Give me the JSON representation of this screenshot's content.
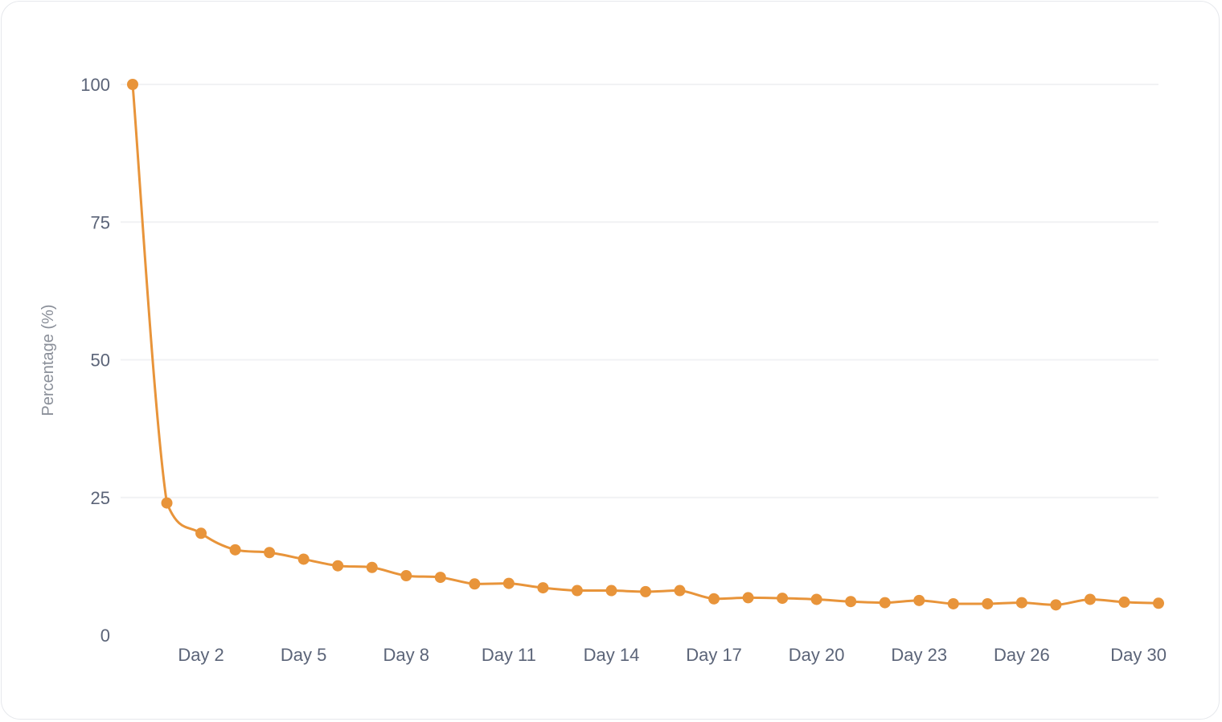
{
  "chart_data": {
    "type": "line",
    "ylabel": "Percentage (%)",
    "xlabel": "",
    "ylim": [
      0,
      100
    ],
    "yticks": [
      0,
      25,
      50,
      75,
      100
    ],
    "x": [
      1,
      2,
      3,
      4,
      5,
      6,
      7,
      8,
      9,
      10,
      11,
      12,
      13,
      14,
      15,
      16,
      17,
      18,
      19,
      20,
      21,
      22,
      23,
      24,
      25,
      26,
      27,
      28,
      29,
      30,
      31
    ],
    "x_tick_labels": [
      {
        "x": 3,
        "label": "Day 2"
      },
      {
        "x": 6,
        "label": "Day 5"
      },
      {
        "x": 9,
        "label": "Day 8"
      },
      {
        "x": 12,
        "label": "Day 11"
      },
      {
        "x": 15,
        "label": "Day 14"
      },
      {
        "x": 18,
        "label": "Day 17"
      },
      {
        "x": 21,
        "label": "Day 20"
      },
      {
        "x": 24,
        "label": "Day 23"
      },
      {
        "x": 27,
        "label": "Day 26"
      },
      {
        "x": 31,
        "label": "Day 30"
      }
    ],
    "series": [
      {
        "color": "#e8943a",
        "values": [
          100,
          24,
          18.5,
          15.5,
          15,
          13.8,
          12.6,
          12.3,
          10.8,
          10.5,
          9.3,
          9.4,
          8.6,
          8.1,
          8.1,
          7.9,
          8.1,
          6.6,
          6.8,
          6.7,
          6.5,
          6.1,
          5.9,
          6.3,
          5.7,
          5.7,
          5.9,
          5.5,
          6.5,
          6.0,
          5.8
        ]
      }
    ],
    "grid": true,
    "legend": "none"
  }
}
